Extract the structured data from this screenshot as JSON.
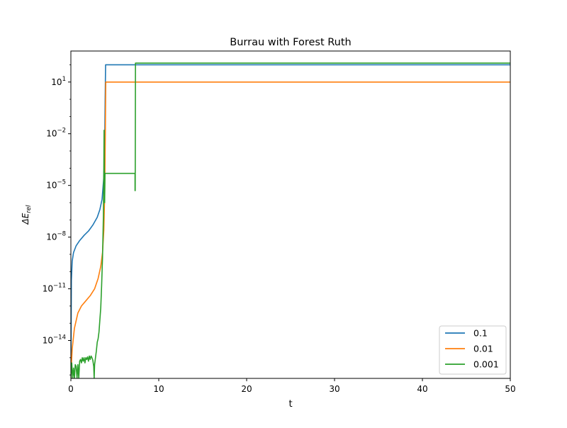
{
  "chart_data": {
    "type": "line",
    "title": "Burrau with Forest Ruth",
    "xlabel": "t",
    "ylabel": "ΔE_rel",
    "ylabel_base": "ΔE",
    "ylabel_sub": "rel",
    "xlim": [
      0,
      50
    ],
    "ylim_log10": [
      -16.2,
      2.8
    ],
    "y_scale": "log",
    "grid": false,
    "legend_position": "lower-right",
    "x_ticks": [
      {
        "value": 0,
        "label": "0"
      },
      {
        "value": 10,
        "label": "10"
      },
      {
        "value": 20,
        "label": "20"
      },
      {
        "value": 30,
        "label": "30"
      },
      {
        "value": 40,
        "label": "40"
      },
      {
        "value": 50,
        "label": "50"
      }
    ],
    "y_ticks": [
      {
        "exp": 1,
        "label": "10",
        "sup": "1"
      },
      {
        "exp": -2,
        "label": "10",
        "sup": "−2"
      },
      {
        "exp": -5,
        "label": "10",
        "sup": "−5"
      },
      {
        "exp": -8,
        "label": "10",
        "sup": "−8"
      },
      {
        "exp": -11,
        "label": "10",
        "sup": "−11"
      },
      {
        "exp": -14,
        "label": "10",
        "sup": "−14"
      }
    ],
    "series": [
      {
        "name": "0.1",
        "color": "#1f77b4",
        "points": [
          [
            0.0,
            -16.2
          ],
          [
            0.06,
            -10.5
          ],
          [
            0.15,
            -9.4
          ],
          [
            0.3,
            -8.9
          ],
          [
            0.6,
            -8.5
          ],
          [
            1.0,
            -8.2
          ],
          [
            1.5,
            -7.9
          ],
          [
            2.0,
            -7.65
          ],
          [
            2.5,
            -7.3
          ],
          [
            3.0,
            -6.85
          ],
          [
            3.3,
            -6.4
          ],
          [
            3.55,
            -5.8
          ],
          [
            3.75,
            -4.5
          ],
          [
            3.85,
            -2.5
          ],
          [
            3.9,
            0.0
          ],
          [
            3.95,
            2.0
          ],
          [
            4.0,
            2.0
          ],
          [
            50.0,
            2.0
          ]
        ]
      },
      {
        "name": "0.01",
        "color": "#ff7f0e",
        "points": [
          [
            0.0,
            -16.2
          ],
          [
            0.05,
            -15.5
          ],
          [
            0.15,
            -14.5
          ],
          [
            0.4,
            -13.3
          ],
          [
            0.8,
            -12.4
          ],
          [
            1.2,
            -12.0
          ],
          [
            1.7,
            -11.7
          ],
          [
            2.2,
            -11.4
          ],
          [
            2.7,
            -11.0
          ],
          [
            3.1,
            -10.4
          ],
          [
            3.4,
            -9.7
          ],
          [
            3.6,
            -8.9
          ],
          [
            3.75,
            -7.6
          ],
          [
            3.85,
            -5.4
          ],
          [
            3.92,
            -2.0
          ],
          [
            3.97,
            1.0
          ],
          [
            4.0,
            1.0
          ],
          [
            50.0,
            1.0
          ]
        ]
      },
      {
        "name": "0.001",
        "color": "#2ca02c",
        "points": [
          [
            0.0,
            -16.2
          ],
          [
            0.1,
            -15.3
          ],
          [
            0.2,
            -16.2
          ],
          [
            0.3,
            -15.6
          ],
          [
            0.4,
            -16.2
          ],
          [
            0.5,
            -15.4
          ],
          [
            0.6,
            -15.5
          ],
          [
            0.7,
            -16.2
          ],
          [
            0.8,
            -15.4
          ],
          [
            0.9,
            -16.2
          ],
          [
            1.0,
            -15.2
          ],
          [
            1.1,
            -15.1
          ],
          [
            1.2,
            -15.3
          ],
          [
            1.3,
            -15.0
          ],
          [
            1.4,
            -15.2
          ],
          [
            1.5,
            -15.0
          ],
          [
            1.6,
            -15.3
          ],
          [
            1.7,
            -15.0
          ],
          [
            1.8,
            -15.1
          ],
          [
            1.9,
            -14.95
          ],
          [
            2.0,
            -15.2
          ],
          [
            2.1,
            -14.9
          ],
          [
            2.2,
            -15.1
          ],
          [
            2.3,
            -14.9
          ],
          [
            2.4,
            -15.0
          ],
          [
            2.5,
            -15.15
          ],
          [
            2.6,
            -15.5
          ],
          [
            2.65,
            -16.2
          ],
          [
            2.7,
            -15.4
          ],
          [
            2.8,
            -15.0
          ],
          [
            2.9,
            -14.6
          ],
          [
            3.0,
            -14.1
          ],
          [
            3.1,
            -13.9
          ],
          [
            3.2,
            -13.5
          ],
          [
            3.3,
            -12.8
          ],
          [
            3.4,
            -12.1
          ],
          [
            3.5,
            -10.8
          ],
          [
            3.6,
            -9.2
          ],
          [
            3.7,
            -6.8
          ],
          [
            3.75,
            -4.0
          ],
          [
            3.78,
            -1.8
          ],
          [
            3.8,
            -4.0
          ],
          [
            3.84,
            -6.0
          ],
          [
            3.88,
            -4.3
          ],
          [
            4.0,
            -4.3
          ],
          [
            7.3,
            -4.3
          ],
          [
            7.3,
            -5.3
          ],
          [
            7.32,
            -5.3
          ],
          [
            7.35,
            2.1
          ],
          [
            50.0,
            2.1
          ]
        ]
      }
    ]
  }
}
